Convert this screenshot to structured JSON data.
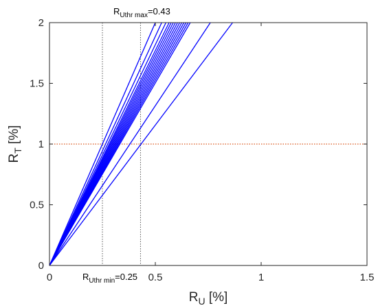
{
  "chart_data": {
    "type": "line",
    "xlabel": {
      "main": "R",
      "sub": "U",
      "rest": " [%]"
    },
    "ylabel": {
      "main": "R",
      "sub": "T",
      "rest": " [%]"
    },
    "xlim": [
      0,
      1.5
    ],
    "ylim": [
      0,
      2
    ],
    "x_ticks": [
      0,
      0.5,
      1,
      1.5
    ],
    "x_tick_labels": [
      "0",
      "0.5",
      "1",
      "1.5"
    ],
    "y_ticks": [
      0,
      0.5,
      1,
      1.5,
      2
    ],
    "y_tick_labels": [
      "0",
      "0.5",
      "1",
      "1.5",
      "2"
    ],
    "grid": false,
    "line_color": "#0000ff",
    "threshold_color": "#d95319",
    "threshold_y": 1,
    "series": [
      {
        "x": [
          0,
          0.5
        ],
        "y": [
          0,
          2
        ]
      },
      {
        "x": [
          0,
          0.53
        ],
        "y": [
          0,
          2
        ]
      },
      {
        "x": [
          0,
          0.55
        ],
        "y": [
          0,
          2
        ]
      },
      {
        "x": [
          0,
          0.565
        ],
        "y": [
          0,
          2
        ]
      },
      {
        "x": [
          0,
          0.575
        ],
        "y": [
          0,
          2
        ]
      },
      {
        "x": [
          0,
          0.585
        ],
        "y": [
          0,
          2
        ]
      },
      {
        "x": [
          0,
          0.595
        ],
        "y": [
          0,
          2
        ]
      },
      {
        "x": [
          0,
          0.605
        ],
        "y": [
          0,
          2
        ]
      },
      {
        "x": [
          0,
          0.615
        ],
        "y": [
          0,
          2
        ]
      },
      {
        "x": [
          0,
          0.625
        ],
        "y": [
          0,
          2
        ]
      },
      {
        "x": [
          0,
          0.635
        ],
        "y": [
          0,
          2
        ]
      },
      {
        "x": [
          0,
          0.645
        ],
        "y": [
          0,
          2
        ]
      },
      {
        "x": [
          0,
          0.655
        ],
        "y": [
          0,
          2
        ]
      },
      {
        "x": [
          0,
          0.665
        ],
        "y": [
          0,
          2
        ]
      },
      {
        "x": [
          0,
          0.76
        ],
        "y": [
          0,
          2
        ]
      },
      {
        "x": [
          0,
          0.865
        ],
        "y": [
          0,
          2
        ]
      }
    ],
    "vlines": [
      {
        "x": 0.25,
        "label_main": "R",
        "label_sub": "Uthr min",
        "label_rest": "=0.25",
        "label_position": "below-axis"
      },
      {
        "x": 0.43,
        "label_main": "R",
        "label_sub": "Uthr max",
        "label_rest": "=0.43",
        "label_position": "above-plot"
      }
    ]
  }
}
